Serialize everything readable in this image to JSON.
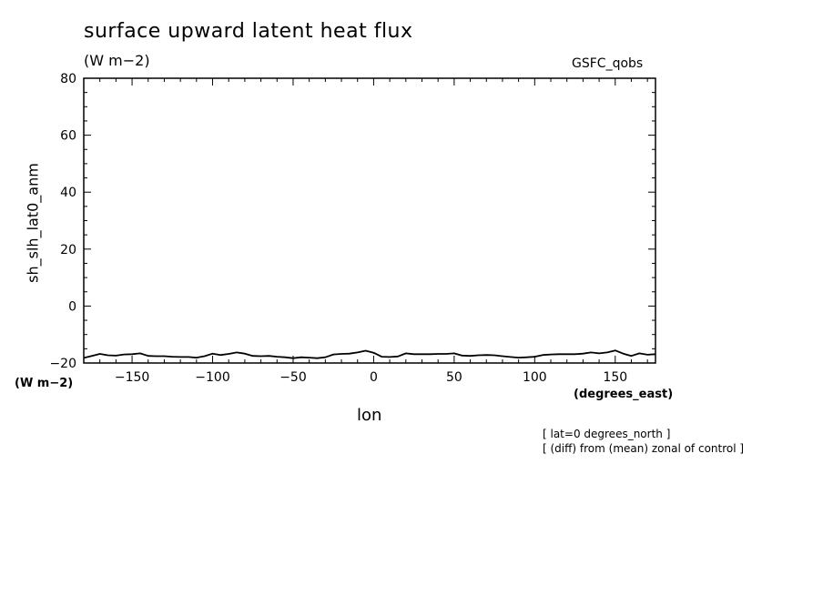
{
  "chart_data": {
    "type": "line",
    "title": "surface upward latent heat flux",
    "units_label": "(W m−2)",
    "source_label": "GSFC_qobs",
    "ylabel": "sh_slh_lat0_anm",
    "y_units": "(W m−2)",
    "xlabel": "lon",
    "x_units": "(degrees_east)",
    "notes": [
      "[ lat=0 degrees_north ]",
      "[ (diff) from (mean) zonal of control ]"
    ],
    "xlim": [
      -180,
      175
    ],
    "ylim": [
      -20,
      80
    ],
    "x_ticks": [
      -150,
      -100,
      -50,
      0,
      50,
      100,
      150
    ],
    "x_tick_labels": [
      "−150",
      "−100",
      "−50",
      "0",
      "50",
      "100",
      "150"
    ],
    "y_ticks": [
      -20,
      0,
      20,
      40,
      60,
      80
    ],
    "y_tick_labels": [
      "−20",
      "0",
      "20",
      "40",
      "60",
      "80"
    ],
    "grid": false,
    "series": [
      {
        "x": [
          -180,
          -175,
          -170,
          -165,
          -160,
          -155,
          -150,
          -145,
          -140,
          -135,
          -130,
          -125,
          -120,
          -115,
          -110,
          -105,
          -100,
          -95,
          -90,
          -85,
          -80,
          -75,
          -70,
          -65,
          -60,
          -55,
          -50,
          -45,
          -40,
          -35,
          -30,
          -25,
          -20,
          -15,
          -10,
          -5,
          0,
          5,
          10,
          15,
          20,
          25,
          30,
          35,
          40,
          45,
          50,
          55,
          60,
          65,
          70,
          75,
          80,
          85,
          90,
          95,
          100,
          105,
          110,
          115,
          120,
          125,
          130,
          135,
          140,
          145,
          150,
          155,
          160,
          165,
          170,
          175
        ],
        "values": [
          -18.2,
          -17.5,
          -16.8,
          -17.3,
          -17.4,
          -17.0,
          -16.9,
          -16.6,
          -17.5,
          -17.6,
          -17.6,
          -17.8,
          -17.9,
          -17.9,
          -18.1,
          -17.6,
          -16.7,
          -17.2,
          -16.8,
          -16.3,
          -16.7,
          -17.5,
          -17.6,
          -17.5,
          -17.8,
          -18.0,
          -18.3,
          -18.0,
          -18.1,
          -18.3,
          -18.0,
          -17.0,
          -16.8,
          -16.7,
          -16.3,
          -15.7,
          -16.4,
          -17.8,
          -17.9,
          -17.7,
          -16.6,
          -16.9,
          -16.9,
          -16.9,
          -16.8,
          -16.8,
          -16.6,
          -17.4,
          -17.5,
          -17.3,
          -17.2,
          -17.3,
          -17.6,
          -17.9,
          -18.1,
          -18.0,
          -17.8,
          -17.2,
          -17.0,
          -16.9,
          -16.9,
          -16.9,
          -16.7,
          -16.3,
          -16.6,
          -16.3,
          -15.6,
          -16.7,
          -17.5,
          -16.6,
          -17.1,
          -16.9
        ]
      }
    ]
  }
}
